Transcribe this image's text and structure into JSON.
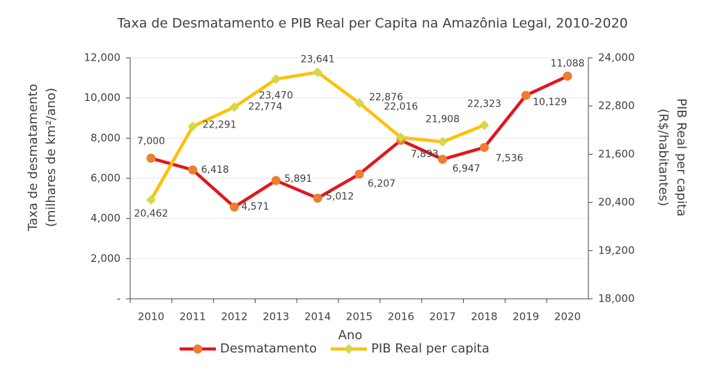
{
  "chart_data": {
    "type": "line",
    "title": "Taxa de Desmatamento e PIB Real per Capita na Amazônia Legal, 2010-2020",
    "x_label": "Ano",
    "y_label": [
      "Taxa de desmatamento",
      "(milhares de km²/ano)"
    ],
    "y2_label": [
      "PIB Real per capita",
      "(R$/habitantes)"
    ],
    "categories": [
      "2010",
      "2011",
      "2012",
      "2013",
      "2014",
      "2015",
      "2016",
      "2017",
      "2018",
      "2019",
      "2020"
    ],
    "ylim": [
      0,
      12000
    ],
    "yticks": [
      {
        "value": 0,
        "label": "-"
      },
      {
        "value": 2000,
        "label": "2,000"
      },
      {
        "value": 4000,
        "label": "4,000"
      },
      {
        "value": 6000,
        "label": "6,000"
      },
      {
        "value": 8000,
        "label": "8,000"
      },
      {
        "value": 10000,
        "label": "10,000"
      },
      {
        "value": 12000,
        "label": "12,000"
      }
    ],
    "y2lim": [
      18000,
      24000
    ],
    "y2ticks": [
      {
        "value": 18000,
        "label": "18,000"
      },
      {
        "value": 19200,
        "label": "19,200"
      },
      {
        "value": 20400,
        "label": "20,400"
      },
      {
        "value": 21600,
        "label": "21,600"
      },
      {
        "value": 22800,
        "label": "22,800"
      },
      {
        "value": 24000,
        "label": "24,000"
      }
    ],
    "grid": true,
    "legend": "bottom",
    "series": [
      {
        "name": "Desmatamento",
        "color": "#e3161b",
        "marker_color": "#ed7d31",
        "marker": "circle",
        "values": [
          7000,
          6418,
          4571,
          5891,
          5012,
          6207,
          7893,
          6947,
          7536,
          10129,
          11088
        ],
        "value_labels": [
          "7,000",
          "6,418",
          "4,571",
          "5,891",
          "5,012",
          "6,207",
          "7,893",
          "6,947",
          "7,536",
          "10,129",
          "11,088"
        ]
      },
      {
        "name": "PIB Real per capita",
        "color": "#ffc000",
        "marker_color": "#d6d64a",
        "marker": "diamond",
        "axis": "y2",
        "values": [
          20462,
          22291,
          22774,
          23470,
          23641,
          22876,
          22016,
          21908,
          22323,
          null,
          null
        ],
        "value_labels": [
          "20,462",
          "22,291",
          "22,774",
          "23,470",
          "23,641",
          "22,876",
          "22,016",
          "21,908",
          "22,323",
          null,
          null
        ]
      }
    ]
  }
}
